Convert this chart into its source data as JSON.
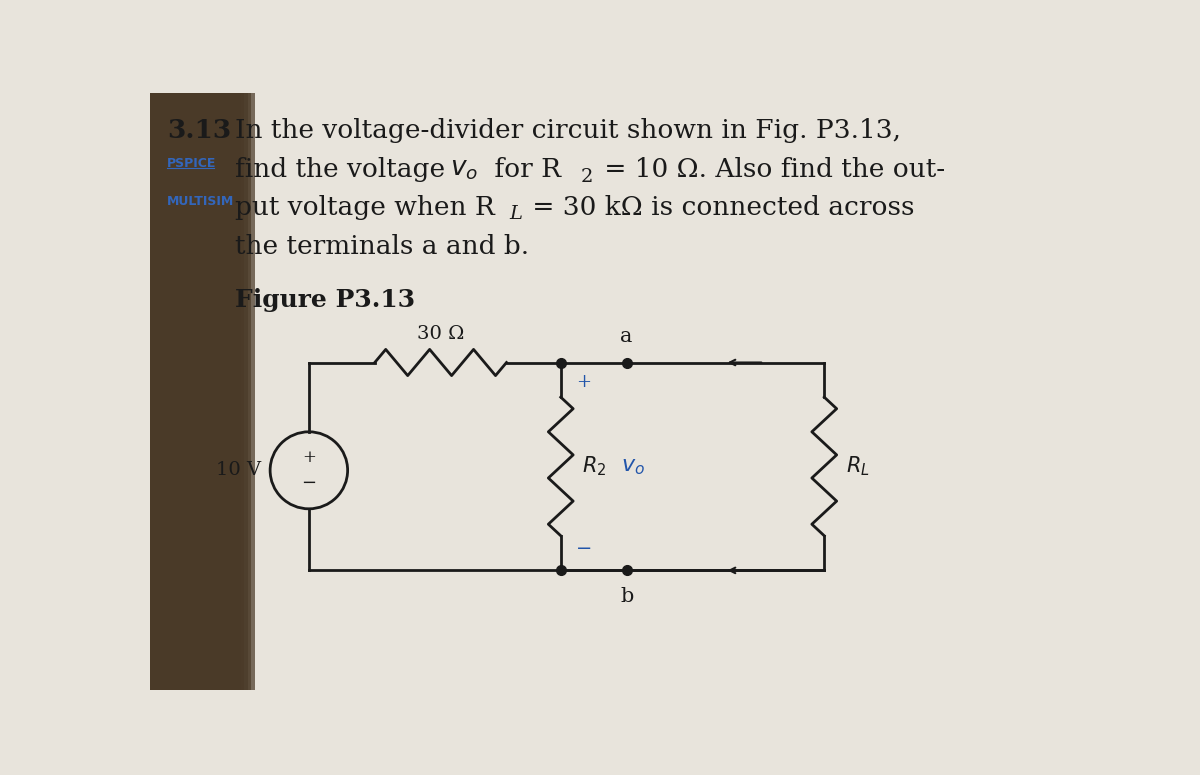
{
  "bg_color_main": "#e8e4dc",
  "bg_color_shadow": "#8a7a68",
  "text_color": "#1a1a1a",
  "blue_color": "#2255aa",
  "pspice_color": "#3366bb",
  "multisim_color": "#3366bb",
  "title_problem": "3.13",
  "pspice_label": "PSPICE",
  "multisim_label": "MULTISIM",
  "problem_line1": "In the voltage-divider circuit shown in Fig. P3.13,",
  "problem_line2": "find the voltage ",
  "problem_line2b": "v",
  "problem_line2c": "o",
  "problem_line2d": " for R",
  "problem_line2e": "2",
  "problem_line2f": " = 10 Ω. Also find the out-",
  "problem_line3": "put voltage when R",
  "problem_line3b": "L",
  "problem_line3c": " = 30 kΩ is connected across",
  "problem_line4": "the terminals a and b.",
  "figure_label": "Figure P3.13",
  "vs_label": "10 V",
  "r1_label": "30 Ω",
  "r2_label": "R",
  "r2_sub": "2",
  "vo_label": "v",
  "vo_sub": "o",
  "rl_label": "R",
  "rl_sub": "L",
  "node_a": "a",
  "node_b": "b"
}
